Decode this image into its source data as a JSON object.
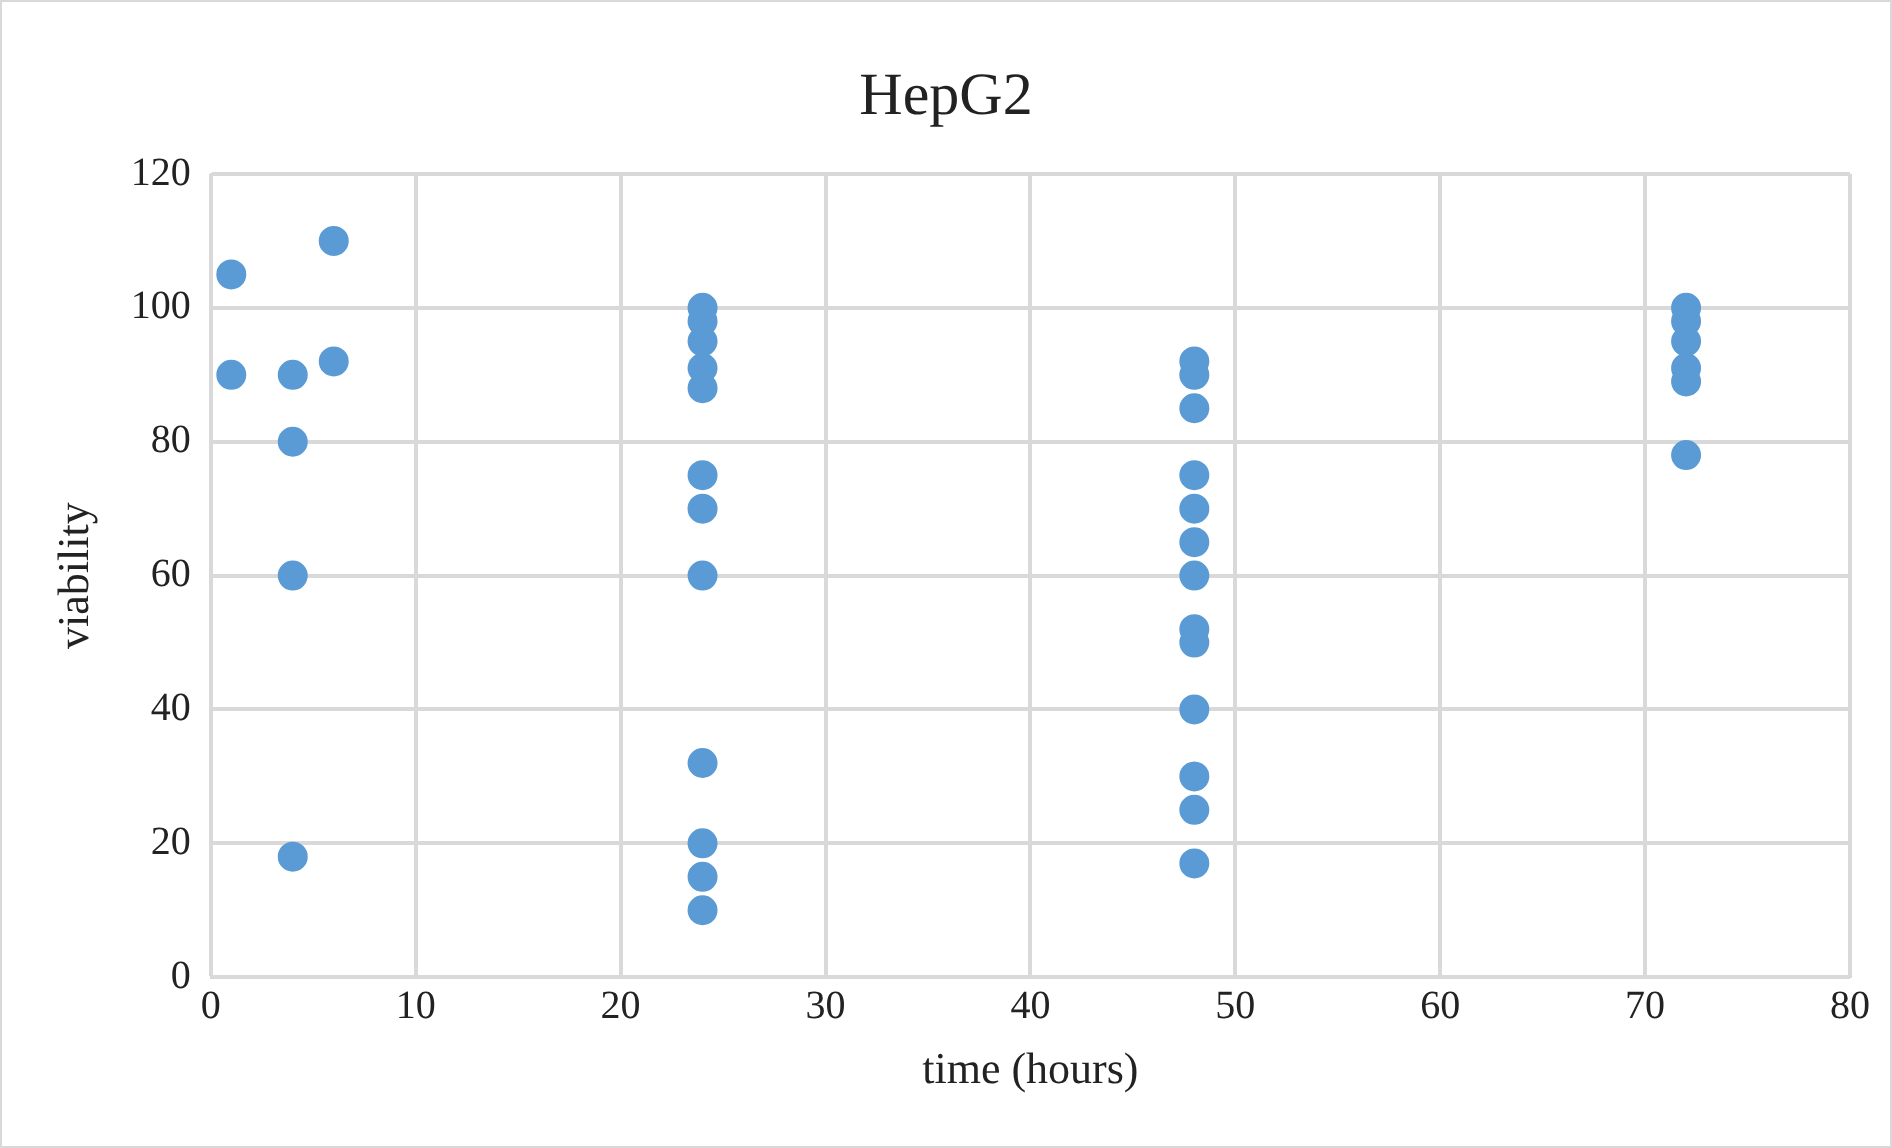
{
  "chart_data": {
    "type": "scatter",
    "title": "HepG2",
    "xlabel": "time (hours)",
    "ylabel": "viability",
    "series": [
      {
        "color": "#5b9bd5",
        "x": [
          1,
          1,
          4,
          4,
          4,
          4,
          6,
          6,
          24,
          24,
          24,
          24,
          24,
          24,
          24,
          24,
          24,
          24,
          24,
          24,
          48,
          48,
          48,
          48,
          48,
          48,
          48,
          48,
          48,
          48,
          48,
          48,
          48,
          72,
          72,
          72,
          72,
          72,
          72
        ],
        "values": [
          105,
          90,
          90,
          80,
          60,
          18,
          110,
          92,
          100,
          98,
          95,
          91,
          88,
          75,
          70,
          60,
          32,
          20,
          15,
          10,
          92,
          90,
          85,
          75,
          70,
          65,
          60,
          52,
          50,
          40,
          30,
          25,
          17,
          100,
          98,
          95,
          91,
          89,
          78
        ]
      }
    ],
    "xlim": [
      0,
      80
    ],
    "xticks": [
      0,
      10,
      20,
      30,
      40,
      50,
      60,
      70,
      80
    ],
    "ylim": [
      0,
      120
    ],
    "yticks": [
      0,
      20,
      40,
      60,
      80,
      100,
      120
    ],
    "grid": true,
    "legend": false,
    "marker": "circle"
  }
}
